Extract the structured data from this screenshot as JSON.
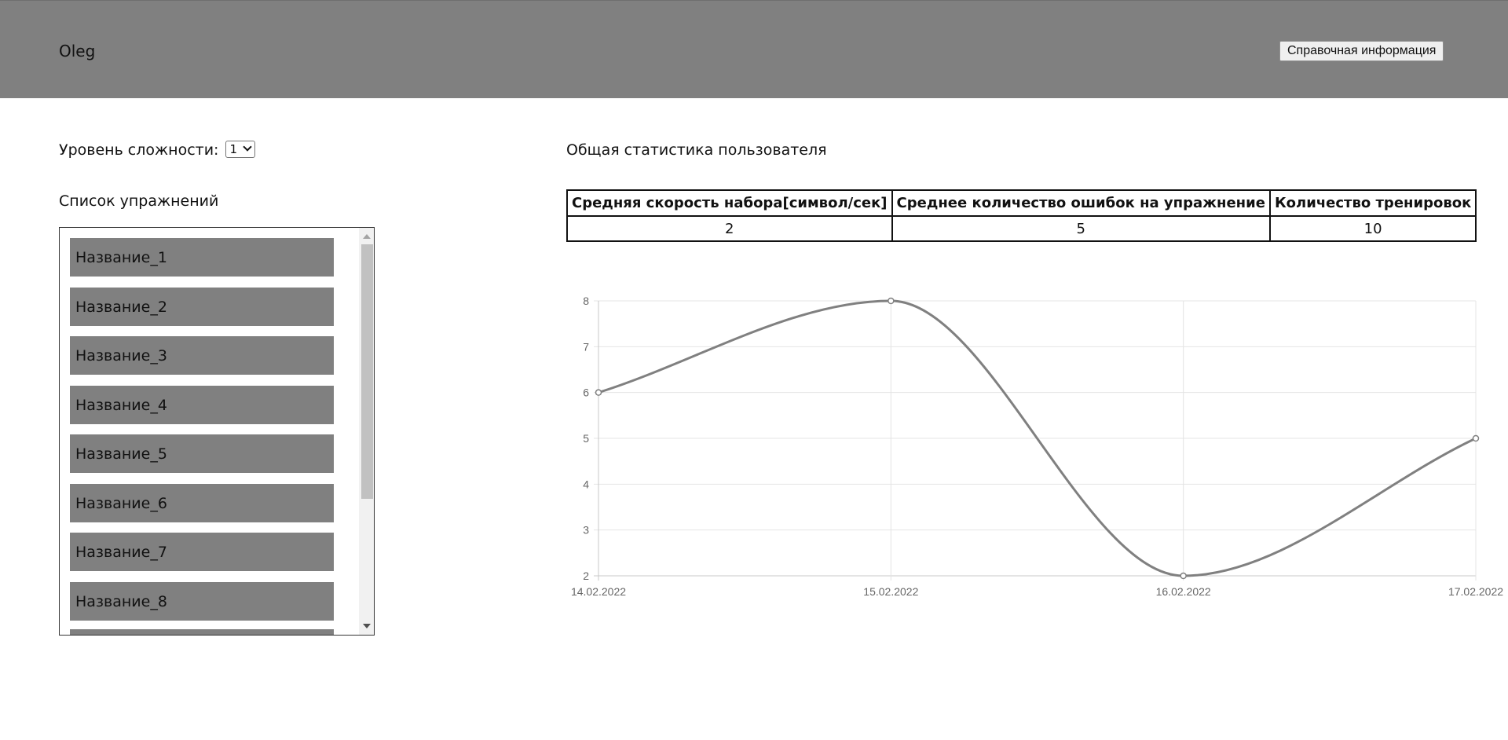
{
  "header": {
    "username": "Oleg",
    "help_button_label": "Справочная информация"
  },
  "difficulty": {
    "label": "Уровень сложности:",
    "selected": "1"
  },
  "exercise_list": {
    "title": "Список упражнений",
    "items": [
      "Название_1",
      "Название_2",
      "Название_3",
      "Название_4",
      "Название_5",
      "Название_6",
      "Название_7",
      "Название_8"
    ]
  },
  "stats": {
    "title": "Общая статистика пользователя",
    "columns": [
      "Средняя скорость набора[символ/сек]",
      "Среднее количество ошибок на упражнение",
      "Количество тренировок"
    ],
    "values": [
      "2",
      "5",
      "10"
    ]
  },
  "colors": {
    "header_bg": "#808080",
    "item_bg": "#808080",
    "line": "#808080"
  },
  "chart_data": {
    "type": "line",
    "x": [
      "14.02.2022",
      "15.02.2022",
      "16.02.2022",
      "17.02.2022"
    ],
    "values": [
      6,
      8,
      2,
      5
    ],
    "ylim": [
      2,
      8
    ],
    "yticks": [
      2,
      3,
      4,
      5,
      6,
      7,
      8
    ],
    "grid": true
  }
}
